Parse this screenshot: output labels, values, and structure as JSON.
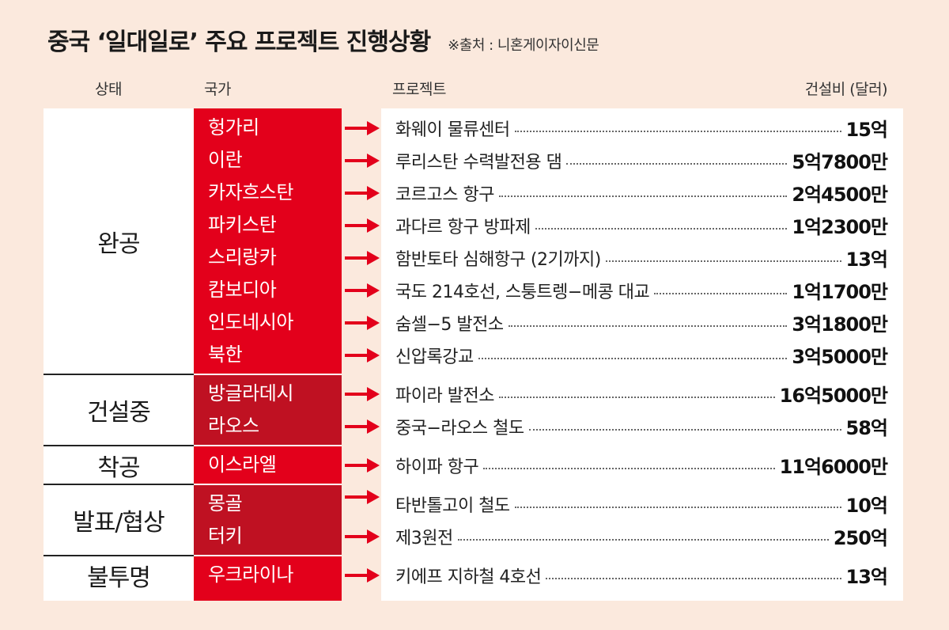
{
  "title": "중국 ‘일대일로’ 주요 프로젝트 진행상황",
  "source": "※출처 : 니혼게이자이신문",
  "headers": {
    "status": "상태",
    "country": "국가",
    "project": "프로젝트",
    "cost": "건설비 (달러)"
  },
  "colors": {
    "background": "#fbe9dd",
    "red_bright": "#e3001b",
    "red_dark": "#bf1122"
  },
  "groups": [
    {
      "status": "완공",
      "rows": [
        {
          "country": "헝가리",
          "project": "화웨이 물류센터",
          "cost": "15억"
        },
        {
          "country": "이란",
          "project": "루리스탄 수력발전용 댐",
          "cost": "5억7800만"
        },
        {
          "country": "카자흐스탄",
          "project": "코르고스 항구",
          "cost": "2억4500만"
        },
        {
          "country": "파키스탄",
          "project": "과다르 항구 방파제",
          "cost": "1억2300만"
        },
        {
          "country": "스리랑카",
          "project": "함반토타 심해항구 (2기까지)",
          "cost": "13억"
        },
        {
          "country": "캄보디아",
          "project": "국도 214호선, 스퉁트렝−메콩 대교",
          "cost": "1억1700만"
        },
        {
          "country": "인도네시아",
          "project": "숨셀−5 발전소",
          "cost": "3억1800만"
        },
        {
          "country": "북한",
          "project": "신압록강교",
          "cost": "3억5000만"
        }
      ]
    },
    {
      "status": "건설중",
      "rows": [
        {
          "country": "방글라데시",
          "project": "파이라 발전소",
          "cost": "16억5000만"
        },
        {
          "country": "라오스",
          "project": "중국−라오스 철도",
          "cost": "58억"
        }
      ]
    },
    {
      "status": "착공",
      "rows": [
        {
          "country": "이스라엘",
          "project": "하이파 항구",
          "cost": "11억6000만"
        }
      ]
    },
    {
      "status": "발표/협상",
      "rows": [
        {
          "country": "몽골",
          "project": "타반톨고이 철도",
          "cost": "10억"
        },
        {
          "country": "터키",
          "project": "제3원전",
          "cost": "250억"
        }
      ]
    },
    {
      "status": "불투명",
      "rows": [
        {
          "country": "우크라이나",
          "project": "키에프 지하철 4호선",
          "cost": "13억"
        }
      ]
    }
  ]
}
